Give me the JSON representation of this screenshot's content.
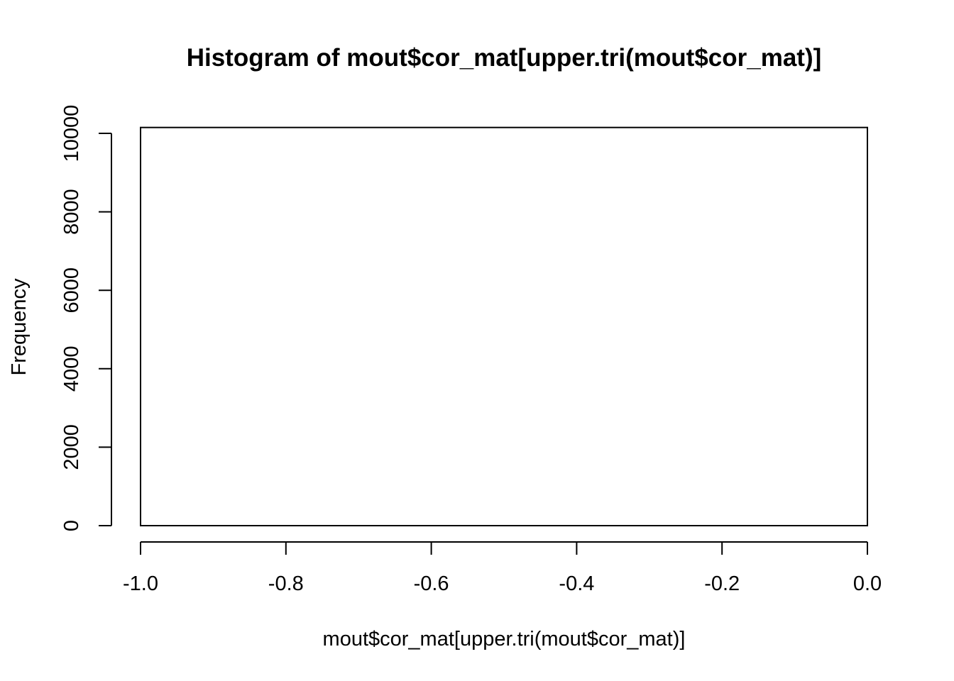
{
  "chart_data": {
    "type": "bar",
    "title": "Histogram of mout$cor_mat[upper.tri(mout$cor_mat)]",
    "xlabel": "mout$cor_mat[upper.tri(mout$cor_mat)]",
    "ylabel": "Frequency",
    "xlim": [
      -1.0,
      0.0
    ],
    "ylim": [
      0,
      10000
    ],
    "x_ticks": [
      "-1.0",
      "-0.8",
      "-0.6",
      "-0.4",
      "-0.2",
      "0.0"
    ],
    "x_tick_values": [
      -1.0,
      -0.8,
      -0.6,
      -0.4,
      -0.2,
      0.0
    ],
    "y_ticks": [
      "0",
      "2000",
      "4000",
      "6000",
      "8000",
      "10000"
    ],
    "y_tick_values": [
      0,
      2000,
      4000,
      6000,
      8000,
      10000
    ],
    "bins": [
      {
        "x_start": -1.0,
        "x_end": 0.0,
        "count": 10150
      }
    ],
    "grid": false,
    "colors": {
      "stroke": "#000000",
      "fill": "#ffffff"
    }
  }
}
